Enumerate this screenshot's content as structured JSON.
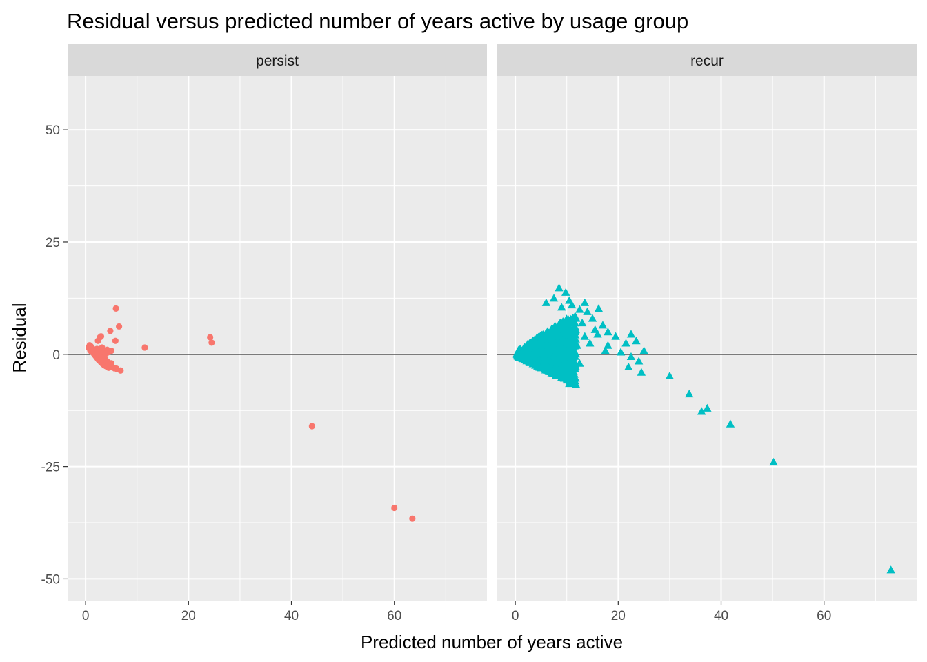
{
  "chart_data": {
    "type": "scatter",
    "title": "Residual versus predicted number of years active by usage group",
    "xlabel": "Predicted number of years active",
    "ylabel": "Residual",
    "xlim": [
      -3.5,
      78
    ],
    "ylim": [
      -55,
      62
    ],
    "x_ticks": [
      0,
      20,
      40,
      60
    ],
    "y_ticks": [
      -50,
      -25,
      0,
      25,
      50
    ],
    "x_tick_labels": [
      "0",
      "20",
      "40",
      "60"
    ],
    "y_tick_labels": [
      "-50",
      "-25",
      "0",
      "25",
      "50"
    ],
    "grid": true,
    "hline": 0,
    "legend": "none",
    "facets": [
      {
        "name": "persist",
        "color": "#F8766D",
        "shape": "circle",
        "points": [
          [
            0.6,
            1.5
          ],
          [
            0.8,
            2.0
          ],
          [
            1.0,
            1.8
          ],
          [
            1.2,
            1.5
          ],
          [
            1.4,
            1.2
          ],
          [
            0.9,
            0.9
          ],
          [
            1.1,
            0.6
          ],
          [
            1.5,
            0.3
          ],
          [
            1.7,
            0.0
          ],
          [
            1.9,
            -0.3
          ],
          [
            2.1,
            -0.6
          ],
          [
            2.3,
            -0.9
          ],
          [
            2.5,
            -1.2
          ],
          [
            2.8,
            -1.5
          ],
          [
            3.0,
            -1.8
          ],
          [
            3.3,
            -2.1
          ],
          [
            3.6,
            -2.4
          ],
          [
            3.9,
            -2.6
          ],
          [
            4.2,
            -2.8
          ],
          [
            4.5,
            -3.0
          ],
          [
            4.8,
            -2.5
          ],
          [
            5.2,
            -2.9
          ],
          [
            5.6,
            -3.1
          ],
          [
            6.0,
            -3.2
          ],
          [
            6.8,
            -3.6
          ],
          [
            1.3,
            1.0
          ],
          [
            1.6,
            0.8
          ],
          [
            2.0,
            0.5
          ],
          [
            2.4,
            0.2
          ],
          [
            2.7,
            -0.1
          ],
          [
            3.1,
            -0.4
          ],
          [
            3.4,
            -0.8
          ],
          [
            3.8,
            -1.1
          ],
          [
            4.1,
            -1.5
          ],
          [
            4.4,
            -1.8
          ],
          [
            4.7,
            -2.2
          ],
          [
            5.0,
            -2.0
          ],
          [
            2.2,
            1.2
          ],
          [
            2.6,
            1.0
          ],
          [
            3.0,
            0.8
          ],
          [
            3.5,
            0.5
          ],
          [
            4.0,
            0.2
          ],
          [
            4.5,
            0.5
          ],
          [
            5.0,
            0.8
          ],
          [
            3.2,
            1.5
          ],
          [
            4.2,
            1.0
          ],
          [
            2.4,
            3.0
          ],
          [
            2.8,
            3.8
          ],
          [
            3.0,
            4.0
          ],
          [
            4.8,
            5.2
          ],
          [
            5.8,
            3.0
          ],
          [
            6.5,
            6.2
          ],
          [
            5.9,
            10.2
          ],
          [
            11.5,
            1.5
          ],
          [
            24.2,
            3.8
          ],
          [
            24.5,
            2.6
          ],
          [
            44.0,
            -16.0
          ],
          [
            60.0,
            -34.2
          ],
          [
            63.5,
            -36.6
          ]
        ]
      },
      {
        "name": "recur",
        "color": "#00BFC4",
        "shape": "triangle",
        "cluster": {
          "x_max": 11.5,
          "y_min": -7,
          "y_max": 8.5,
          "n": 900,
          "seed": 12345
        },
        "points": [
          [
            8.5,
            14.8
          ],
          [
            9.8,
            13.8
          ],
          [
            7.5,
            12.5
          ],
          [
            10.5,
            12.0
          ],
          [
            6.0,
            11.5
          ],
          [
            11.0,
            11.0
          ],
          [
            13.5,
            11.5
          ],
          [
            16.2,
            10.2
          ],
          [
            12.5,
            10.0
          ],
          [
            9.0,
            10.5
          ],
          [
            14.0,
            9.5
          ],
          [
            15.0,
            8.0
          ],
          [
            13.0,
            7.0
          ],
          [
            17.0,
            6.5
          ],
          [
            18.0,
            5.0
          ],
          [
            16.0,
            4.5
          ],
          [
            19.5,
            4.0
          ],
          [
            22.5,
            4.5
          ],
          [
            21.5,
            2.5
          ],
          [
            23.5,
            3.0
          ],
          [
            18.0,
            2.0
          ],
          [
            17.5,
            0.8
          ],
          [
            20.5,
            0.5
          ],
          [
            25.0,
            0.8
          ],
          [
            22.5,
            -0.5
          ],
          [
            24.0,
            -1.5
          ],
          [
            22.0,
            -2.8
          ],
          [
            24.5,
            -4.0
          ],
          [
            30.0,
            -4.8
          ],
          [
            33.8,
            -8.8
          ],
          [
            36.2,
            -12.7
          ],
          [
            37.3,
            -12.0
          ],
          [
            41.8,
            -15.5
          ],
          [
            50.2,
            -24.0
          ],
          [
            73.0,
            -48.0
          ],
          [
            10.5,
            -6.5
          ],
          [
            11.0,
            -5.8
          ],
          [
            12.5,
            -2.0
          ],
          [
            12.0,
            2.0
          ],
          [
            13.5,
            4.0
          ],
          [
            14.5,
            2.5
          ],
          [
            15.5,
            5.5
          ],
          [
            10.8,
            7.8
          ],
          [
            11.5,
            6.0
          ]
        ]
      }
    ]
  }
}
